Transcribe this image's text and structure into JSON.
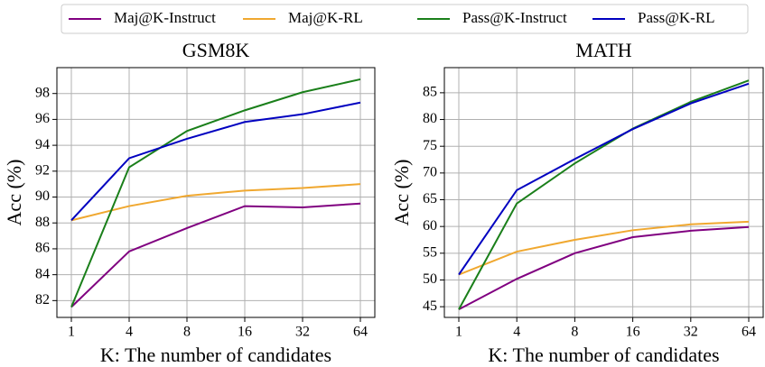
{
  "chart_data": [
    {
      "type": "line",
      "title": "GSM8K",
      "x_label": "K: The number of candidates",
      "y_label": "Acc (%)",
      "categories": [
        "1",
        "4",
        "8",
        "16",
        "32",
        "64"
      ],
      "ylim": [
        80.7,
        100
      ],
      "yticks": [
        82,
        84,
        86,
        88,
        90,
        92,
        94,
        96,
        98
      ],
      "grid": true,
      "series": [
        {
          "name": "Maj@K-Instruct",
          "color": "#800080",
          "values": [
            81.5,
            85.8,
            87.6,
            89.3,
            89.2,
            89.5
          ]
        },
        {
          "name": "Maj@K-RL",
          "color": "#f0a830",
          "values": [
            88.2,
            89.3,
            90.1,
            90.5,
            90.7,
            91.0
          ]
        },
        {
          "name": "Pass@K-Instruct",
          "color": "#1a7f1a",
          "values": [
            81.5,
            92.3,
            95.1,
            96.7,
            98.1,
            99.1
          ]
        },
        {
          "name": "Pass@K-RL",
          "color": "#0000c0",
          "values": [
            88.2,
            93.0,
            94.5,
            95.8,
            96.4,
            97.3
          ]
        }
      ]
    },
    {
      "type": "line",
      "title": "MATH",
      "x_label": "K: The number of candidates",
      "y_label": "Acc (%)",
      "categories": [
        "1",
        "4",
        "8",
        "16",
        "32",
        "64"
      ],
      "ylim": [
        43.0,
        89.7
      ],
      "yticks": [
        45,
        50,
        55,
        60,
        65,
        70,
        75,
        80,
        85
      ],
      "grid": true,
      "series": [
        {
          "color": "#800080",
          "values": [
            44.5,
            50.2,
            55.0,
            58.0,
            59.2,
            59.9
          ]
        },
        {
          "color": "#f0a830",
          "values": [
            51.0,
            55.3,
            57.5,
            59.3,
            60.4,
            60.9
          ]
        },
        {
          "color": "#1a7f1a",
          "values": [
            44.5,
            64.3,
            71.8,
            78.3,
            83.3,
            87.3
          ]
        },
        {
          "color": "#0000c0",
          "values": [
            51.0,
            66.8,
            72.6,
            78.2,
            83.0,
            86.7
          ]
        }
      ]
    }
  ]
}
